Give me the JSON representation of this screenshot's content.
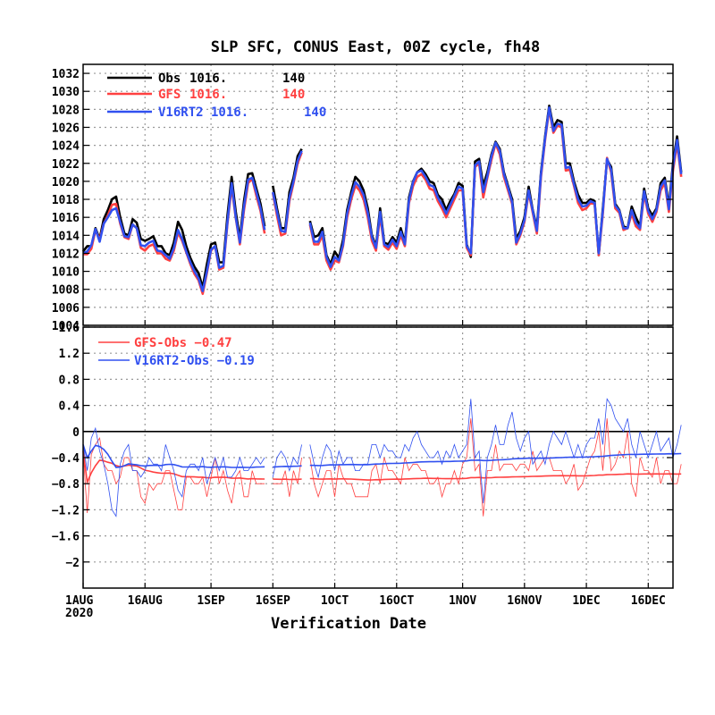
{
  "chart_data": [
    {
      "type": "line",
      "title": "SLP SFC, CONUS East, 00Z cycle, fh48",
      "xlabel": "Verification Date",
      "ylabel": "",
      "x_start": "2020-08-01",
      "x_end": "2020-12-22",
      "x_ticks": [
        "1AUG",
        "16AUG",
        "1SEP",
        "16SEP",
        "1OCT",
        "16OCT",
        "1NOV",
        "16NOV",
        "1DEC",
        "16DEC"
      ],
      "x_year_label": "2020",
      "ylim": [
        1004,
        1033
      ],
      "y_ticks": [
        1004,
        1006,
        1008,
        1010,
        1012,
        1014,
        1016,
        1018,
        1020,
        1022,
        1024,
        1026,
        1028,
        1030,
        1032
      ],
      "grid": true,
      "legend": "top-left",
      "missing_days": [
        {
          "from": 45,
          "to": 46
        },
        {
          "from": 55,
          "to": 56
        }
      ],
      "series": [
        {
          "name": "Obs",
          "mean": "1016.",
          "count": "140",
          "color": "#000000",
          "values": [
            1012.2,
            1012.8,
            1012.8,
            1014.8,
            1013.6,
            1015.8,
            1016.8,
            1018.0,
            1018.3,
            1016.0,
            1014.2,
            1014.0,
            1015.8,
            1015.4,
            1013.6,
            1013.4,
            1013.6,
            1013.9,
            1012.8,
            1012.8,
            1012.0,
            1011.8,
            1013.2,
            1015.5,
            1014.6,
            1012.8,
            1011.5,
            1010.5,
            1009.8,
            1008.2,
            1010.8,
            1013.0,
            1013.2,
            1011.0,
            1011.0,
            1016.2,
            1020.5,
            1016.6,
            1013.6,
            1017.8,
            1020.8,
            1020.9,
            1019.2,
            1017.5,
            1015.0,
            null,
            1019.5,
            1017.0,
            1014.8,
            1014.8,
            1018.8,
            1020.4,
            1022.8,
            1023.6,
            null,
            1015.6,
            1013.8,
            1014.0,
            1014.8,
            1011.8,
            1010.8,
            1012.2,
            1011.5,
            1013.5,
            1016.8,
            1018.8,
            1020.5,
            1020.0,
            1019.0,
            1017.0,
            1014.0,
            1012.8,
            1017.0,
            1013.2,
            1013.0,
            1013.8,
            1013.2,
            1014.8,
            1013.2,
            1018.2,
            1020.0,
            1021.0,
            1021.4,
            1020.8,
            1020.0,
            1019.8,
            1018.5,
            1018.0,
            1016.8,
            1017.8,
            1018.6,
            1019.8,
            1019.5,
            1013.0,
            1011.6,
            1022.2,
            1022.5,
            1019.5,
            1021.0,
            1023.0,
            1024.4,
            1023.6,
            1021.0,
            1019.5,
            1018.0,
            1013.6,
            1014.5,
            1016.0,
            1019.4,
            1016.8,
            1014.8,
            1021.0,
            1025.0,
            1028.4,
            1026.0,
            1026.8,
            1026.6,
            1022.0,
            1022.0,
            1020.0,
            1018.5,
            1017.6,
            1017.6,
            1018.0,
            1017.8,
            1011.8,
            1017.0,
            1022.4,
            1021.6,
            1017.5,
            1016.8,
            1015.0,
            1014.8,
            1017.2,
            1016.0,
            1015.0,
            1019.2,
            1017.0,
            1016.2,
            1017.0,
            1019.8,
            1020.4,
            1017.2,
            1022.0,
            1025.0,
            1021.0
          ]
        },
        {
          "name": "GFS",
          "mean": "1016.",
          "count": "140",
          "color": "#ff4040",
          "values": [
            1011.9,
            1011.9,
            1012.5,
            1014.6,
            1013.5,
            1015.3,
            1016.2,
            1017.4,
            1017.5,
            1015.3,
            1013.8,
            1013.6,
            1015.2,
            1014.8,
            1012.6,
            1012.3,
            1012.8,
            1013.0,
            1012.0,
            1012.0,
            1011.4,
            1011.2,
            1012.3,
            1014.3,
            1013.4,
            1012.1,
            1010.8,
            1009.7,
            1009.0,
            1007.5,
            1009.8,
            1012.3,
            1012.8,
            1010.2,
            1010.4,
            1015.3,
            1019.4,
            1015.9,
            1013.0,
            1016.8,
            1019.8,
            1020.3,
            1018.4,
            1016.7,
            1014.2,
            null,
            1018.7,
            1016.2,
            1014.0,
            1014.2,
            1017.8,
            1019.8,
            1022.0,
            1023.2,
            null,
            1015.2,
            1013.0,
            1013.0,
            1014.0,
            1011.2,
            1010.2,
            1011.2,
            1011.0,
            1012.8,
            1016.0,
            1018.0,
            1019.5,
            1019.0,
            1018.0,
            1016.0,
            1013.4,
            1012.3,
            1016.2,
            1012.8,
            1012.4,
            1013.2,
            1012.5,
            1014.0,
            1012.8,
            1017.6,
            1019.5,
            1020.5,
            1020.8,
            1020.2,
            1019.2,
            1019.0,
            1017.8,
            1017.0,
            1016.0,
            1017.0,
            1018.0,
            1019.0,
            1019.0,
            1012.6,
            1011.8,
            1021.6,
            1022.0,
            1018.2,
            1020.4,
            1022.4,
            1024.2,
            1023.0,
            1020.5,
            1019.0,
            1017.5,
            1013.0,
            1014.0,
            1015.5,
            1018.8,
            1016.5,
            1014.2,
            1020.5,
            1024.6,
            1028.0,
            1025.4,
            1026.2,
            1026.0,
            1021.2,
            1021.3,
            1019.5,
            1017.6,
            1016.8,
            1017.0,
            1017.6,
            1017.5,
            1011.8,
            1016.4,
            1022.6,
            1021.0,
            1017.0,
            1016.5,
            1014.6,
            1014.8,
            1016.4,
            1015.0,
            1014.6,
            1018.6,
            1016.4,
            1015.5,
            1016.6,
            1019.0,
            1019.8,
            1016.6,
            1021.2,
            1024.2,
            1020.5
          ]
        },
        {
          "name": "V16RT2",
          "mean": "1016.",
          "count": "140",
          "color": "#3050f0",
          "values": [
            1012.0,
            1012.2,
            1012.9,
            1014.7,
            1013.3,
            1015.3,
            1016.0,
            1016.8,
            1017.0,
            1015.5,
            1013.9,
            1013.8,
            1015.2,
            1014.8,
            1012.9,
            1012.8,
            1013.2,
            1013.4,
            1012.3,
            1012.2,
            1011.8,
            1011.4,
            1012.6,
            1014.6,
            1013.6,
            1012.2,
            1011.0,
            1010.0,
            1009.2,
            1007.8,
            1010.0,
            1012.4,
            1012.8,
            1010.4,
            1010.6,
            1015.5,
            1019.8,
            1016.0,
            1013.2,
            1017.2,
            1020.2,
            1020.4,
            1018.8,
            1017.0,
            1014.6,
            null,
            1018.8,
            1016.6,
            1014.5,
            1014.4,
            1018.2,
            1020.0,
            1022.3,
            1023.4,
            null,
            1015.4,
            1013.3,
            1013.3,
            1014.4,
            1011.6,
            1010.5,
            1011.6,
            1011.2,
            1013.0,
            1016.4,
            1018.4,
            1019.9,
            1019.4,
            1018.5,
            1016.5,
            1013.8,
            1012.6,
            1016.6,
            1013.0,
            1012.7,
            1013.5,
            1012.8,
            1014.4,
            1013.0,
            1017.9,
            1019.9,
            1021.0,
            1021.2,
            1020.5,
            1019.6,
            1019.4,
            1018.2,
            1017.4,
            1016.4,
            1017.4,
            1018.4,
            1019.4,
            1019.2,
            1012.8,
            1012.0,
            1021.8,
            1022.2,
            1018.8,
            1020.6,
            1022.8,
            1024.3,
            1023.4,
            1020.8,
            1019.3,
            1017.7,
            1013.2,
            1014.2,
            1015.7,
            1019.0,
            1016.7,
            1014.5,
            1020.8,
            1024.8,
            1028.2,
            1025.6,
            1026.4,
            1026.3,
            1021.5,
            1021.6,
            1019.7,
            1018.0,
            1017.2,
            1017.3,
            1017.8,
            1017.6,
            1012.0,
            1016.7,
            1022.5,
            1021.3,
            1017.3,
            1016.7,
            1014.8,
            1014.8,
            1016.8,
            1015.4,
            1014.8,
            1018.9,
            1016.7,
            1015.8,
            1016.8,
            1019.4,
            1020.1,
            1016.9,
            1021.6,
            1024.6,
            1020.8
          ]
        }
      ]
    },
    {
      "type": "line",
      "title": "",
      "xlabel": "Verification Date",
      "ylabel": "",
      "ylim": [
        -2.4,
        1.6
      ],
      "y_ticks": [
        -2,
        -1.6,
        -1.2,
        -0.8,
        -0.4,
        0,
        0.4,
        0.8,
        1.2,
        1.6
      ],
      "y_tick_labels": [
        "−2",
        "−1.6",
        "−1.2",
        "−0.8",
        "−0.4",
        "0",
        "0.4",
        "0.8",
        "1.2",
        "1.6"
      ],
      "zero_line": true,
      "grid": true,
      "legend": "top-left",
      "series": [
        {
          "name": "GFS-Obs",
          "mean": "−0.47",
          "color": "#ff4040",
          "values": [
            -0.3,
            -1.25,
            -0.35,
            -0.2,
            -0.1,
            -0.5,
            -0.6,
            -0.6,
            -0.8,
            -0.7,
            -0.4,
            -0.4,
            -0.6,
            -0.6,
            -1.0,
            -1.1,
            -0.8,
            -0.9,
            -0.8,
            -0.8,
            -0.6,
            -0.6,
            -0.9,
            -1.2,
            -1.2,
            -0.7,
            -0.7,
            -0.8,
            -0.8,
            -0.7,
            -1.0,
            -0.7,
            -0.4,
            -0.8,
            -0.6,
            -0.9,
            -1.1,
            -0.7,
            -0.6,
            -1.0,
            -1.0,
            -0.6,
            -0.8,
            -0.8,
            -0.8,
            null,
            -0.8,
            -0.8,
            -0.8,
            -0.6,
            -1.0,
            -0.6,
            -0.8,
            -0.4,
            null,
            -0.4,
            -0.8,
            -1.0,
            -0.8,
            -0.6,
            -0.6,
            -1.0,
            -0.5,
            -0.7,
            -0.8,
            -0.8,
            -1.0,
            -1.0,
            -1.0,
            -1.0,
            -0.6,
            -0.5,
            -0.8,
            -0.4,
            -0.6,
            -0.6,
            -0.7,
            -0.8,
            -0.4,
            -0.6,
            -0.5,
            -0.5,
            -0.6,
            -0.6,
            -0.8,
            -0.8,
            -0.7,
            -1.0,
            -0.8,
            -0.8,
            -0.6,
            -0.8,
            -0.5,
            -0.4,
            0.2,
            -0.6,
            -0.5,
            -1.3,
            -0.6,
            -0.6,
            -0.2,
            -0.6,
            -0.5,
            -0.5,
            -0.5,
            -0.6,
            -0.5,
            -0.5,
            -0.6,
            -0.3,
            -0.6,
            -0.5,
            -0.4,
            -0.4,
            -0.6,
            -0.6,
            -0.6,
            -0.8,
            -0.7,
            -0.5,
            -0.9,
            -0.8,
            -0.6,
            -0.4,
            -0.3,
            0.0,
            -0.6,
            0.2,
            -0.6,
            -0.5,
            -0.3,
            -0.4,
            0.0,
            -0.8,
            -1.0,
            -0.4,
            -0.6,
            -0.6,
            -0.7,
            -0.4,
            -0.8,
            -0.6,
            -0.6,
            -0.8,
            -0.8,
            -0.5
          ]
        },
        {
          "name": "V16RT2-Obs",
          "mean": "−0.19",
          "color": "#3050f0",
          "values": [
            -0.2,
            -0.6,
            -0.1,
            0.05,
            -0.3,
            -0.5,
            -0.8,
            -1.2,
            -1.3,
            -0.5,
            -0.3,
            -0.2,
            -0.6,
            -0.6,
            -0.7,
            -0.6,
            -0.4,
            -0.5,
            -0.5,
            -0.6,
            -0.2,
            -0.4,
            -0.6,
            -0.9,
            -1.0,
            -0.6,
            -0.5,
            -0.5,
            -0.6,
            -0.4,
            -0.8,
            -0.6,
            -0.4,
            -0.6,
            -0.4,
            -0.7,
            -0.7,
            -0.6,
            -0.4,
            -0.6,
            -0.6,
            -0.5,
            -0.4,
            -0.5,
            -0.4,
            null,
            -0.7,
            -0.4,
            -0.3,
            -0.4,
            -0.6,
            -0.4,
            -0.5,
            -0.2,
            null,
            -0.2,
            -0.5,
            -0.7,
            -0.4,
            -0.2,
            -0.3,
            -0.6,
            -0.3,
            -0.5,
            -0.4,
            -0.4,
            -0.6,
            -0.6,
            -0.5,
            -0.5,
            -0.2,
            -0.2,
            -0.4,
            -0.2,
            -0.3,
            -0.3,
            -0.4,
            -0.4,
            -0.2,
            -0.3,
            -0.1,
            0.0,
            -0.2,
            -0.3,
            -0.4,
            -0.4,
            -0.3,
            -0.5,
            -0.3,
            -0.4,
            -0.2,
            -0.4,
            -0.3,
            -0.2,
            0.5,
            -0.4,
            -0.3,
            -1.1,
            -0.4,
            -0.2,
            0.1,
            -0.2,
            -0.2,
            0.1,
            0.3,
            -0.1,
            -0.3,
            -0.1,
            0.0,
            -0.5,
            -0.4,
            -0.3,
            -0.5,
            -0.2,
            0.0,
            -0.1,
            -0.2,
            0.0,
            -0.2,
            -0.4,
            -0.2,
            -0.4,
            -0.2,
            -0.1,
            -0.1,
            0.2,
            -0.2,
            0.5,
            0.4,
            0.2,
            0.1,
            0.0,
            0.2,
            -0.2,
            -0.4,
            0.0,
            -0.2,
            -0.4,
            -0.2,
            0.0,
            -0.3,
            -0.2,
            -0.1,
            -0.4,
            -0.2,
            0.1
          ]
        }
      ]
    }
  ]
}
